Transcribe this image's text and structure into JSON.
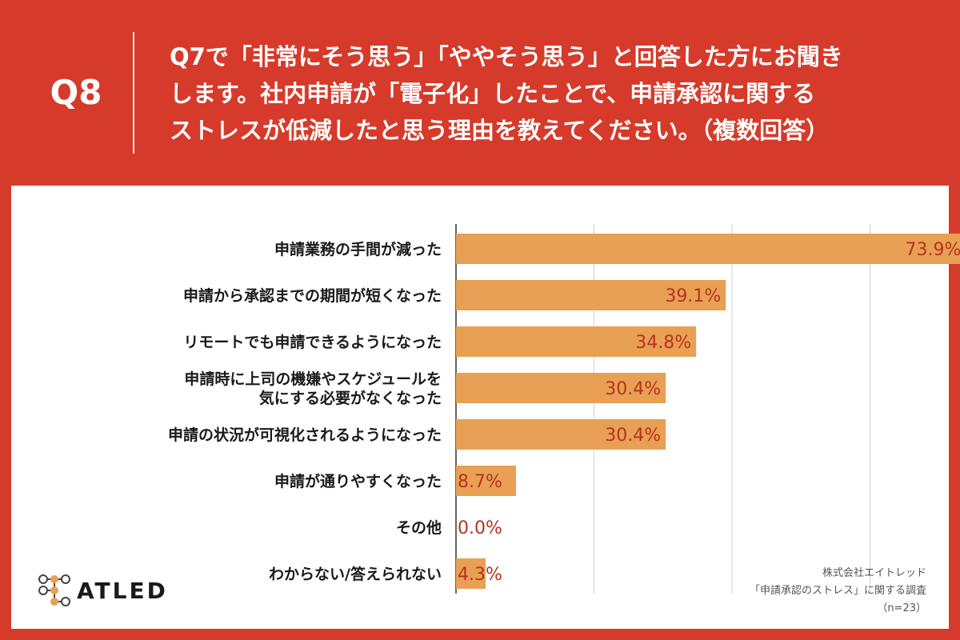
{
  "header": {
    "q_label": "Q8",
    "question_lines": [
      "Q7で「非常にそう思う」「ややそう思う」と回答した方にお聞き",
      "します。社内申請が「電子化」したことで、申請承認に関する",
      "ストレスが低減したと思う理由を教えてください。（複数回答）"
    ]
  },
  "chart_data": {
    "type": "bar",
    "orientation": "horizontal",
    "categories": [
      [
        "申請業務の手間が減った"
      ],
      [
        "申請から承認までの期間が短くなった"
      ],
      [
        "リモートでも申請できるようになった"
      ],
      [
        "申請時に上司の機嫌やスケジュールを",
        "気にする必要がなくなった"
      ],
      [
        "申請の状況が可視化されるようになった"
      ],
      [
        "申請が通りやすくなった"
      ],
      [
        "その他"
      ],
      [
        "わからない/答えられない"
      ]
    ],
    "values": [
      73.9,
      39.1,
      34.8,
      30.4,
      30.4,
      8.7,
      0.0,
      4.3
    ],
    "value_labels": [
      "73.9%",
      "39.1%",
      "34.8%",
      "30.4%",
      "30.4%",
      "8.7%",
      "0.0%",
      "4.3%"
    ],
    "xlim": [
      0,
      80
    ],
    "grid_step": 20,
    "grid": true,
    "bar_color": "#e8a054",
    "label_color": "#b8321e"
  },
  "footer": {
    "brand": "ATLED",
    "source_lines": [
      "株式会社エイトレッド",
      "「申請承認のストレス」に関する調査",
      "（n=23）"
    ]
  }
}
